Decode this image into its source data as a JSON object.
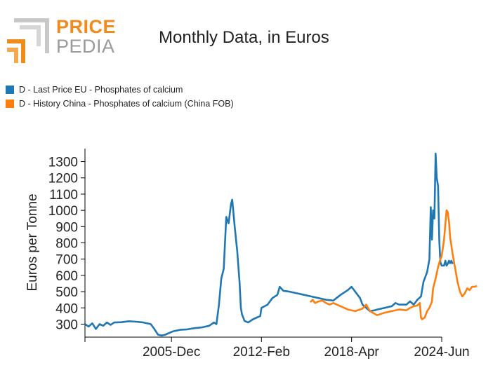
{
  "header": {
    "title": "Monthly Data, in Euros",
    "logo_price": "PRICE",
    "logo_pedia": "PEDIA"
  },
  "legend": [
    {
      "label": "D - Last Price EU - Phosphates of calcium",
      "color": "#1f77b4"
    },
    {
      "label": "D - History China - Phosphates of calcium (China FOB)",
      "color": "#ff7f0e"
    }
  ],
  "chart_data": {
    "type": "line",
    "title": "Monthly Data, in Euros",
    "ylabel": "Euros per Tonne",
    "xlabel": "",
    "x_tick_labels": [
      "2005-Dec",
      "2012-Feb",
      "2018-Apr",
      "2024-Jun"
    ],
    "x_ticks": [
      2005.92,
      2012.08,
      2018.25,
      2024.42
    ],
    "xlim": [
      2000.0,
      2024.42
    ],
    "ylim": [
      220,
      1380
    ],
    "y_ticks": [
      300,
      400,
      500,
      600,
      700,
      800,
      900,
      1000,
      1100,
      1200,
      1300
    ],
    "grid": false,
    "legend_position": "top-left",
    "series": [
      {
        "name": "D - Last Price EU - Phosphates of calcium",
        "color": "#1f77b4",
        "points": [
          [
            2000.0,
            300
          ],
          [
            2000.25,
            285
          ],
          [
            2000.5,
            305
          ],
          [
            2000.75,
            270
          ],
          [
            2001.0,
            300
          ],
          [
            2001.25,
            290
          ],
          [
            2001.5,
            310
          ],
          [
            2001.75,
            295
          ],
          [
            2002.0,
            310
          ],
          [
            2002.5,
            312
          ],
          [
            2003.0,
            318
          ],
          [
            2003.5,
            315
          ],
          [
            2004.0,
            310
          ],
          [
            2004.5,
            300
          ],
          [
            2004.75,
            270
          ],
          [
            2005.0,
            235
          ],
          [
            2005.25,
            230
          ],
          [
            2005.5,
            235
          ],
          [
            2005.75,
            245
          ],
          [
            2006.0,
            255
          ],
          [
            2006.5,
            265
          ],
          [
            2007.0,
            268
          ],
          [
            2007.5,
            275
          ],
          [
            2008.0,
            280
          ],
          [
            2008.5,
            290
          ],
          [
            2008.83,
            310
          ],
          [
            2009.0,
            300
          ],
          [
            2009.17,
            420
          ],
          [
            2009.33,
            580
          ],
          [
            2009.5,
            640
          ],
          [
            2009.67,
            960
          ],
          [
            2009.83,
            920
          ],
          [
            2010.0,
            1040
          ],
          [
            2010.08,
            1065
          ],
          [
            2010.25,
            900
          ],
          [
            2010.42,
            750
          ],
          [
            2010.58,
            560
          ],
          [
            2010.67,
            400
          ],
          [
            2010.75,
            360
          ],
          [
            2010.92,
            320
          ],
          [
            2011.17,
            310
          ],
          [
            2011.5,
            330
          ],
          [
            2012.0,
            350
          ],
          [
            2012.08,
            400
          ],
          [
            2012.5,
            420
          ],
          [
            2012.83,
            460
          ],
          [
            2013.17,
            480
          ],
          [
            2013.33,
            530
          ],
          [
            2013.58,
            505
          ],
          [
            2014.0,
            500
          ],
          [
            2014.5,
            490
          ],
          [
            2015.0,
            480
          ],
          [
            2015.5,
            470
          ],
          [
            2016.0,
            460
          ],
          [
            2016.5,
            450
          ],
          [
            2017.0,
            445
          ],
          [
            2017.5,
            480
          ],
          [
            2018.0,
            510
          ],
          [
            2018.25,
            530
          ],
          [
            2018.5,
            500
          ],
          [
            2018.83,
            460
          ],
          [
            2019.0,
            420
          ],
          [
            2019.25,
            400
          ],
          [
            2019.5,
            380
          ],
          [
            2019.83,
            385
          ],
          [
            2020.0,
            390
          ],
          [
            2020.5,
            400
          ],
          [
            2021.0,
            410
          ],
          [
            2021.25,
            430
          ],
          [
            2021.5,
            420
          ],
          [
            2022.0,
            420
          ],
          [
            2022.25,
            440
          ],
          [
            2022.5,
            420
          ],
          [
            2022.75,
            450
          ],
          [
            2023.0,
            470
          ],
          [
            2023.17,
            560
          ],
          [
            2023.42,
            620
          ],
          [
            2023.58,
            700
          ],
          [
            2023.67,
            1020
          ],
          [
            2023.75,
            820
          ],
          [
            2023.83,
            1000
          ],
          [
            2023.92,
            950
          ],
          [
            2024.0,
            1350
          ],
          [
            2024.08,
            1200
          ],
          [
            2024.17,
            1150
          ],
          [
            2024.25,
            820
          ],
          [
            2024.33,
            680
          ],
          [
            2024.42,
            660
          ],
          [
            2024.5,
            660
          ],
          [
            2024.58,
            660
          ],
          [
            2024.67,
            690
          ],
          [
            2024.75,
            660
          ],
          [
            2024.83,
            670
          ],
          [
            2024.92,
            690
          ],
          [
            2025.0,
            675
          ],
          [
            2025.08,
            690
          ],
          [
            2025.17,
            670
          ]
        ]
      },
      {
        "name": "D - History China - Phosphates of calcium (China FOB)",
        "color": "#ff7f0e",
        "points": [
          [
            2015.42,
            435
          ],
          [
            2015.58,
            450
          ],
          [
            2015.75,
            430
          ],
          [
            2016.0,
            440
          ],
          [
            2016.25,
            445
          ],
          [
            2016.5,
            430
          ],
          [
            2016.75,
            420
          ],
          [
            2017.0,
            430
          ],
          [
            2017.5,
            410
          ],
          [
            2018.0,
            390
          ],
          [
            2018.5,
            380
          ],
          [
            2019.0,
            395
          ],
          [
            2019.25,
            420
          ],
          [
            2019.5,
            380
          ],
          [
            2020.0,
            355
          ],
          [
            2020.5,
            370
          ],
          [
            2021.0,
            380
          ],
          [
            2021.5,
            390
          ],
          [
            2022.0,
            385
          ],
          [
            2022.25,
            400
          ],
          [
            2022.5,
            410
          ],
          [
            2022.75,
            415
          ],
          [
            2022.92,
            430
          ],
          [
            2023.0,
            340
          ],
          [
            2023.08,
            330
          ],
          [
            2023.25,
            340
          ],
          [
            2023.42,
            380
          ],
          [
            2023.58,
            400
          ],
          [
            2023.75,
            440
          ],
          [
            2023.83,
            520
          ],
          [
            2024.0,
            580
          ],
          [
            2024.17,
            650
          ],
          [
            2024.33,
            700
          ],
          [
            2024.42,
            720
          ],
          [
            2024.58,
            820
          ],
          [
            2024.75,
            1000
          ],
          [
            2024.83,
            990
          ],
          [
            2024.92,
            930
          ],
          [
            2025.0,
            830
          ],
          [
            2025.17,
            730
          ],
          [
            2025.33,
            650
          ],
          [
            2025.5,
            560
          ],
          [
            2025.67,
            500
          ],
          [
            2025.83,
            470
          ],
          [
            2026.0,
            490
          ],
          [
            2026.17,
            520
          ],
          [
            2026.33,
            510
          ],
          [
            2026.5,
            530
          ],
          [
            2026.67,
            530
          ],
          [
            2026.83,
            535
          ]
        ]
      }
    ]
  }
}
